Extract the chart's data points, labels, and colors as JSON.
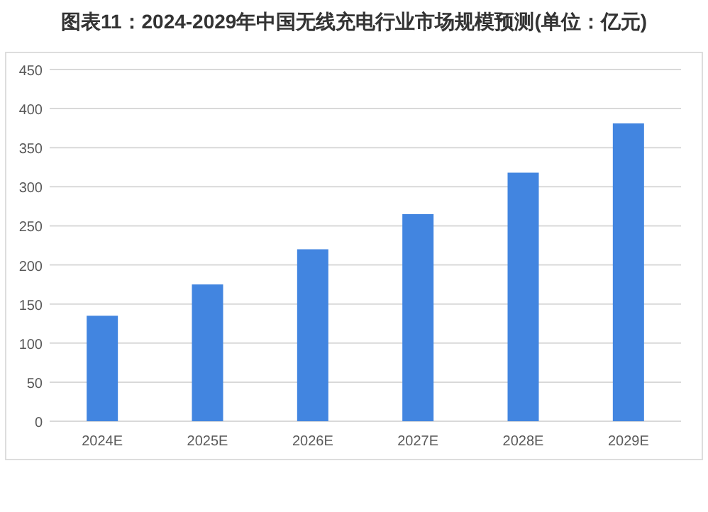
{
  "chart_data": {
    "type": "bar",
    "title": "图表11：2024-2029年中国无线充电行业市场规模预测(单位：亿元)",
    "categories": [
      "2024E",
      "2025E",
      "2026E",
      "2027E",
      "2028E",
      "2029E"
    ],
    "values": [
      135,
      175,
      220,
      265,
      318,
      381
    ],
    "color": "#4285e0",
    "ylim": [
      0,
      450
    ],
    "yticks": [
      0,
      50,
      100,
      150,
      200,
      250,
      300,
      350,
      400,
      450
    ],
    "grid": "y"
  }
}
